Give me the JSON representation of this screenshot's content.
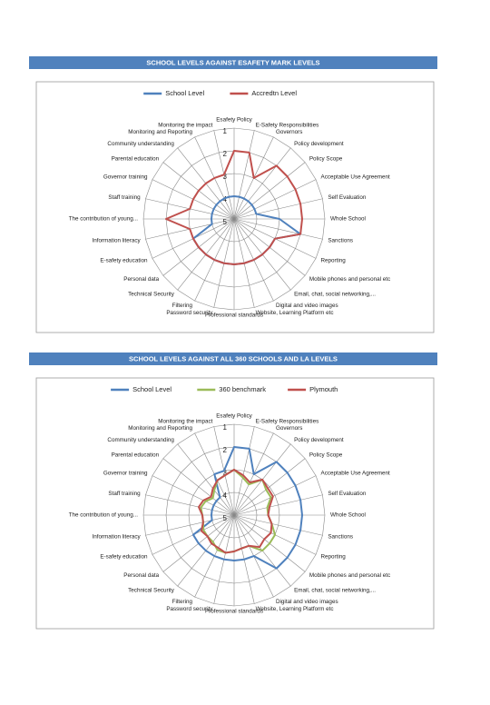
{
  "chart_data": [
    {
      "type": "radar",
      "title": "SCHOOL LEVELS AGAINST ESAFETY MARK LEVELS",
      "categories": [
        "Esafety Policy",
        "E-Safety Responsibilities",
        "Governors",
        "Policy development",
        "Policy Scope",
        "Acceptable Use Agreement",
        "Self Evaluation",
        "Whole School",
        "Sanctions",
        "Reporting",
        "Mobile phones and personal etc",
        "Email, chat, social networking,...",
        "Digital and video images",
        "Website, Learning Platform etc",
        "Professional standards",
        "Password security",
        "Filtering",
        "Technical Security",
        "Personal data",
        "E-safety education",
        "Information literacy",
        "The contribution of young...",
        "Staff training",
        "Governor training",
        "Parental education",
        "Community understanding",
        "Monitoring and Reporting",
        "Monitoring the impact"
      ],
      "series": [
        {
          "name": "School Level",
          "color": "#4f81bd",
          "values": [
            4,
            4,
            4,
            4,
            4,
            4,
            4,
            3,
            2,
            3,
            3,
            3,
            3,
            3,
            3,
            3,
            3,
            3,
            3,
            3,
            4,
            4,
            4,
            4,
            4,
            4,
            4,
            4
          ]
        },
        {
          "name": "Accredtn Level",
          "color": "#c0504d",
          "values": [
            2,
            2,
            3,
            2,
            2,
            2,
            2,
            2,
            2,
            3,
            3,
            3,
            3,
            3,
            3,
            3,
            3,
            3,
            3,
            3,
            3,
            2,
            3,
            3,
            3,
            3,
            3,
            3
          ]
        }
      ],
      "ylim": [
        5,
        1
      ],
      "yticks": [
        1,
        2,
        3,
        4,
        5
      ],
      "grid": true,
      "legend": "top"
    },
    {
      "type": "radar",
      "title": "SCHOOL LEVELS AGAINST ALL 360 SCHOOLS AND LA LEVELS",
      "categories": [
        "Esafety Policy",
        "E-Safety Responsibilities",
        "Governors",
        "Policy development",
        "Policy Scope",
        "Acceptable Use Agreement",
        "Self Evaluation",
        "Whole School",
        "Sanctions",
        "Reporting",
        "Mobile phones and personal etc",
        "Email, chat, social networking,...",
        "Digital and video images",
        "Website, Learning Platform etc",
        "Professional standards",
        "Password security",
        "Filtering",
        "Technical Security",
        "Personal data",
        "E-safety education",
        "Information literacy",
        "The contribution of young...",
        "Staff training",
        "Governor training",
        "Parental education",
        "Community understanding",
        "Monitoring and Reporting",
        "Monitoring the impact"
      ],
      "series": [
        {
          "name": "School Level",
          "color": "#4f81bd",
          "values": [
            2,
            2,
            3,
            2,
            2,
            2,
            2,
            2,
            2,
            2,
            2,
            2,
            3,
            3,
            3,
            3,
            3,
            3,
            3,
            3,
            4,
            4,
            4,
            4,
            4,
            4,
            3,
            3
          ]
        },
        {
          "name": "360 benchmark",
          "color": "#9bbb59",
          "values": [
            3,
            3.3,
            3.5,
            3,
            3.2,
            3.2,
            3.5,
            3.5,
            3.3,
            3,
            3,
            3,
            3.5,
            3.5,
            3.4,
            3.3,
            3.3,
            3.5,
            3.5,
            3.5,
            3.6,
            3.6,
            3.5,
            3.6,
            3.8,
            3.6,
            3.3,
            3.2
          ]
        },
        {
          "name": "Plymouth",
          "color": "#c0504d",
          "values": [
            3,
            3.2,
            3.4,
            3,
            3.1,
            3.1,
            3.4,
            3.5,
            3.3,
            3.2,
            3.3,
            3.2,
            3.5,
            3.5,
            3.4,
            3.3,
            3.4,
            3.4,
            3.5,
            3.4,
            3.6,
            3.6,
            3.4,
            3.5,
            3.7,
            3.5,
            3.3,
            3.2
          ]
        }
      ],
      "ylim": [
        5,
        1
      ],
      "yticks": [
        1,
        2,
        3,
        4,
        5
      ],
      "grid": true,
      "legend": "top"
    }
  ]
}
